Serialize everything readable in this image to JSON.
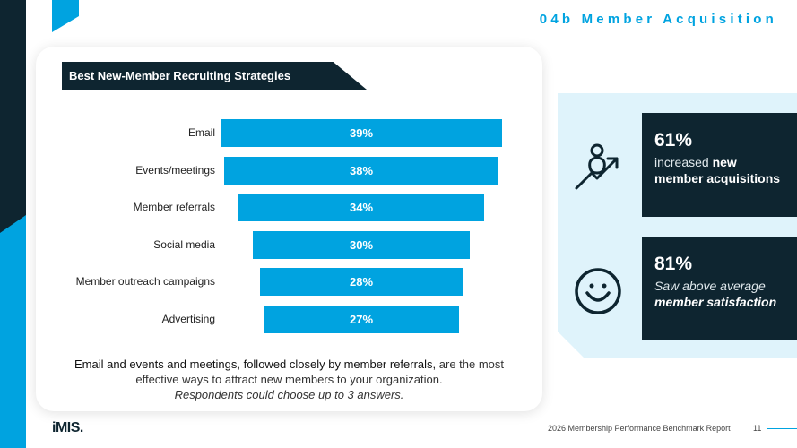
{
  "slide_title": "04b Member Acquisition",
  "card_title": "Best New-Member Recruiting Strategies",
  "chart_data": {
    "type": "bar",
    "orientation": "horizontal-centered",
    "categories": [
      "Email",
      "Events/meetings",
      "Member referrals",
      "Social media",
      "Member outreach campaigns",
      "Advertising"
    ],
    "values": [
      39,
      38,
      34,
      30,
      28,
      27
    ],
    "value_labels": [
      "39%",
      "38%",
      "34%",
      "30%",
      "28%",
      "27%"
    ],
    "title": "Best New-Member Recruiting Strategies",
    "bar_color": "#00a3e0"
  },
  "caption": {
    "bold_part": "Email and events and meetings, followed closely by member referrals,",
    "rest": " are the most effective ways to attract new members to your organization.",
    "note": "Respondents could choose up to 3 answers."
  },
  "stats": [
    {
      "icon": "person-growth-icon",
      "pct": "61%",
      "text_light": "increased ",
      "text_bold": "new member acquisitions"
    },
    {
      "icon": "smiley-face-icon",
      "pct": "81%",
      "text_light": "Saw above average ",
      "text_bold": "member satisfaction"
    }
  ],
  "footer": {
    "logo": "iMIS.",
    "report": "2026 Membership Performance Benchmark Report",
    "page": "11"
  },
  "colors": {
    "accent": "#00a3e0",
    "navy": "#0e2530",
    "panel": "#dff3fb"
  }
}
